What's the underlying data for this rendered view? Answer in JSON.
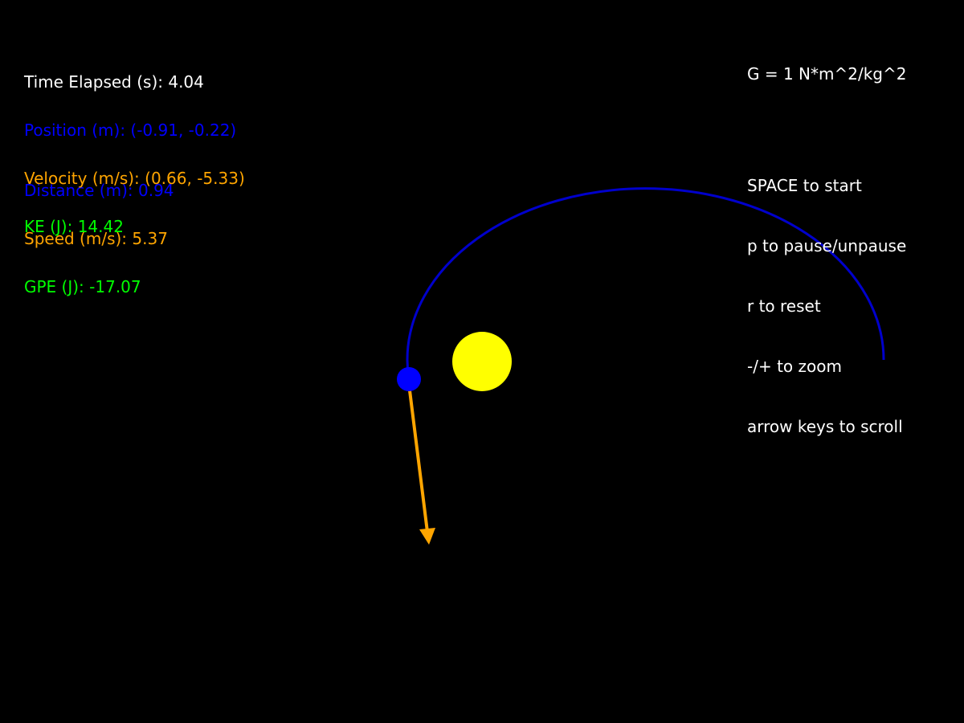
{
  "hud": {
    "time": "Time Elapsed (s): 4.04",
    "position": "Position (m): (-0.91, -0.22)",
    "distance": "Distance (m): 0.94",
    "velocity": "Velocity (m/s): (0.66, -5.33)",
    "speed": "Speed (m/s): 5.37",
    "ke": "KE (J): 14.42",
    "gpe": "GPE (J): -17.07"
  },
  "info": {
    "gravity": "G = 1 N*m^2/kg^2",
    "controls": [
      "SPACE to start",
      "p to pause/unpause",
      "r to reset",
      "-/+ to zoom",
      "arrow keys to scroll"
    ]
  },
  "colors": {
    "background": "#000000",
    "text": "#ffffff",
    "position": "#0000ff",
    "velocity": "#ffa500",
    "energy": "#00ff00",
    "sun": "#ffff00",
    "planet": "#0000ff",
    "orbit_trail": "#0000cc",
    "velocity_arrow": "#ffa500"
  },
  "icons": {
    "sun": "sun-body-icon",
    "planet": "planet-body-icon",
    "velocity": "velocity-arrow-icon"
  }
}
